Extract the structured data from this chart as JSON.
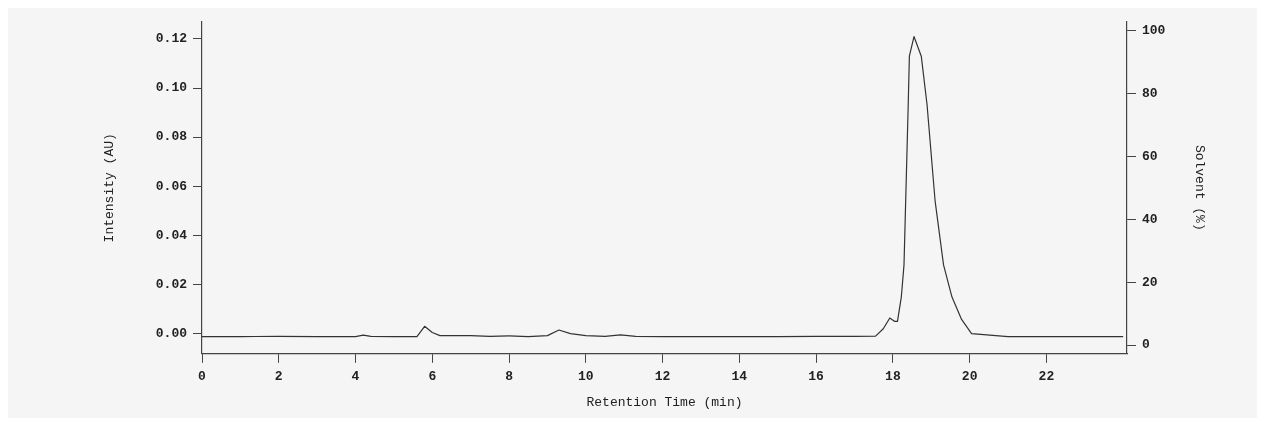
{
  "chart_data": {
    "type": "line",
    "xlabel": "Retention Time (min)",
    "ylabel": "Intensity (AU)",
    "y2label": "Solvent (%)",
    "xlim": [
      0,
      24.1
    ],
    "xticks": [
      0,
      2,
      4,
      6,
      8,
      10,
      12,
      14,
      16,
      18,
      20,
      22
    ],
    "ylim": [
      -0.0082,
      0.127
    ],
    "yticks": [
      {
        "value": 0,
        "label": "0.00"
      },
      {
        "value": 0.02,
        "label": "0.02"
      },
      {
        "value": 0.04,
        "label": "0.04"
      },
      {
        "value": 0.06,
        "label": "0.06"
      },
      {
        "value": 0.08,
        "label": "0.08"
      },
      {
        "value": 0.1,
        "label": "0.10"
      },
      {
        "value": 0.12,
        "label": "0.12"
      }
    ],
    "y2lim": [
      -2.75,
      102.8
    ],
    "y2ticks": [
      0,
      20,
      40,
      60,
      80,
      100
    ],
    "grid": false,
    "legend": false,
    "marker": "none",
    "line_style": "solid",
    "series": [
      {
        "color": "#333333",
        "x": [
          0,
          1,
          2,
          3,
          4,
          4.2,
          4.4,
          5,
          5.6,
          5.8,
          6.0,
          6.2,
          7,
          7.5,
          8,
          8.5,
          9,
          9.3,
          9.6,
          10,
          10.5,
          10.9,
          11.3,
          12,
          13,
          14,
          15,
          16,
          17,
          17.55,
          17.75,
          17.92,
          18.05,
          18.12,
          18.22,
          18.29,
          18.4,
          18.43,
          18.55,
          18.74,
          18.89,
          19.1,
          19.32,
          19.54,
          19.79,
          20.05,
          21,
          22,
          23,
          24
        ],
        "values": [
          -0.0012,
          -0.0012,
          -0.0011,
          -0.0012,
          -0.0012,
          -0.0006,
          -0.0011,
          -0.0012,
          -0.0012,
          0.003,
          0.0005,
          -0.0008,
          -0.0008,
          -0.0011,
          -0.0009,
          -0.0012,
          -0.0008,
          0.0015,
          0,
          -0.0008,
          -0.0011,
          -0.0005,
          -0.0011,
          -0.0012,
          -0.0012,
          -0.0012,
          -0.0012,
          -0.0011,
          -0.0011,
          -0.001,
          0.002,
          0.0064,
          0.005,
          0.005,
          0.0149,
          0.028,
          0.0933,
          0.113,
          0.121,
          0.113,
          0.0933,
          0.0541,
          0.028,
          0.0149,
          0.0058,
          0,
          -0.0012,
          -0.0012,
          -0.0012,
          -0.0012
        ]
      }
    ]
  }
}
